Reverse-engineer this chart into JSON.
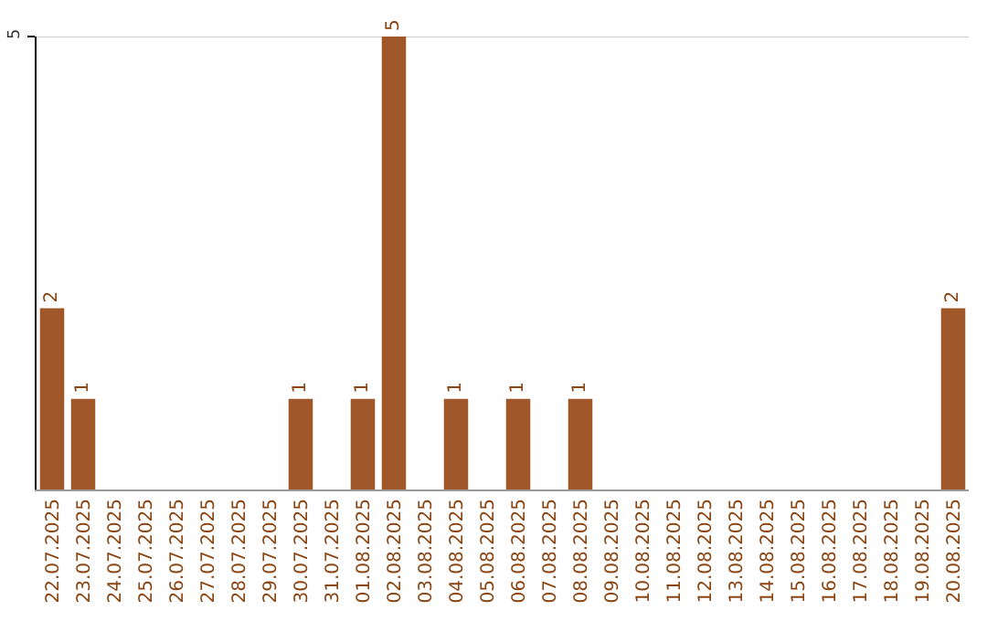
{
  "chart_data": {
    "type": "bar",
    "categories": [
      "22.07.2025",
      "23.07.2025",
      "24.07.2025",
      "25.07.2025",
      "26.07.2025",
      "27.07.2025",
      "28.07.2025",
      "29.07.2025",
      "30.07.2025",
      "31.07.2025",
      "01.08.2025",
      "02.08.2025",
      "03.08.2025",
      "04.08.2025",
      "05.08.2025",
      "06.08.2025",
      "07.08.2025",
      "08.08.2025",
      "09.08.2025",
      "10.08.2025",
      "11.08.2025",
      "12.08.2025",
      "13.08.2025",
      "14.08.2025",
      "15.08.2025",
      "16.08.2025",
      "17.08.2025",
      "18.08.2025",
      "19.08.2025",
      "20.08.2025"
    ],
    "values": [
      2,
      1,
      0,
      0,
      0,
      0,
      0,
      0,
      1,
      0,
      1,
      5,
      0,
      1,
      0,
      1,
      0,
      1,
      0,
      0,
      0,
      0,
      0,
      0,
      0,
      0,
      0,
      0,
      0,
      2
    ],
    "value_labels": [
      "2",
      "1",
      null,
      null,
      null,
      null,
      null,
      null,
      "1",
      null,
      "1",
      "5",
      null,
      "1",
      null,
      "1",
      null,
      "1",
      null,
      null,
      null,
      null,
      null,
      null,
      null,
      null,
      null,
      null,
      null,
      "2"
    ],
    "color": "#a0582a",
    "ylim": [
      0,
      5
    ],
    "yticks": [
      5
    ],
    "ref_lines": [
      {
        "axis": "y",
        "value": 5,
        "color": "#cccccc"
      }
    ],
    "legend": false
  }
}
